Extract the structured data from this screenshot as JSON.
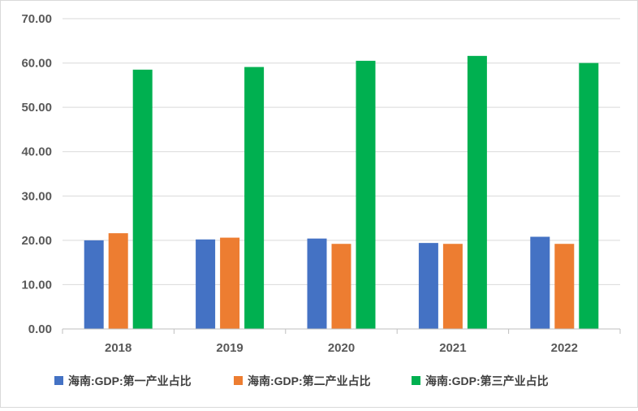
{
  "chart_data": {
    "type": "bar",
    "categories": [
      "2018",
      "2019",
      "2020",
      "2021",
      "2022"
    ],
    "series": [
      {
        "name": "海南:GDP:第一产业占比",
        "color": "#4472c4",
        "values": [
          20.0,
          20.2,
          20.4,
          19.4,
          20.8
        ]
      },
      {
        "name": "海南:GDP:第二产业占比",
        "color": "#ed7d31",
        "values": [
          21.6,
          20.6,
          19.2,
          19.2,
          19.2
        ]
      },
      {
        "name": "海南:GDP:第三产业占比",
        "color": "#00b050",
        "values": [
          58.5,
          59.1,
          60.5,
          61.6,
          60.0
        ]
      }
    ],
    "y_ticks": [
      "0.00",
      "10.00",
      "20.00",
      "30.00",
      "40.00",
      "50.00",
      "60.00",
      "70.00"
    ],
    "ylim": [
      0,
      70
    ],
    "grid": true,
    "legend_position": "bottom",
    "gridline_color": "#d9d9d9",
    "axis_color": "#bfbfbf"
  }
}
